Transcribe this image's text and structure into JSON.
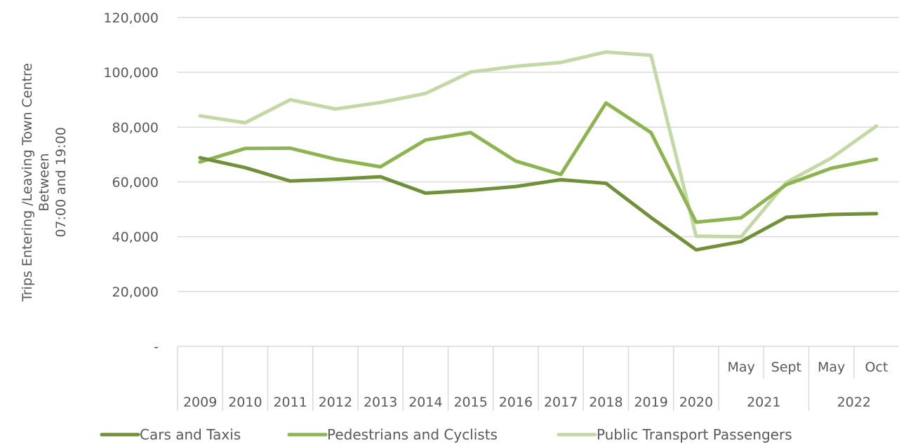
{
  "chart_data": {
    "type": "line",
    "title": "",
    "ylabel_lines": [
      "Trips Entering /Leaving Town Centre",
      "Between",
      "07:00 and 19:00"
    ],
    "ylim": [
      0,
      120000
    ],
    "yticks": [
      0,
      20000,
      40000,
      60000,
      80000,
      100000,
      120000
    ],
    "ytick_labels": [
      "-",
      "20,000",
      "40,000",
      "60,000",
      "80,000",
      "100,000",
      "120,000"
    ],
    "categories": [
      "2009",
      "2010",
      "2011",
      "2012",
      "2013",
      "2014",
      "2015",
      "2016",
      "2017",
      "2018",
      "2019",
      "2020",
      "May",
      "Sept",
      "May",
      "Oct"
    ],
    "category_groups": [
      {
        "label": "2021",
        "subs": [
          "May",
          "Sept"
        ]
      },
      {
        "label": "2022",
        "subs": [
          "May",
          "Oct"
        ]
      }
    ],
    "grid": true,
    "legend_position": "bottom",
    "series": [
      {
        "name": "Cars and Taxis",
        "color": "#70913a",
        "values": [
          68800,
          65200,
          60300,
          61000,
          61900,
          55900,
          56900,
          58300,
          60800,
          59500,
          47000,
          35200,
          38200,
          47100,
          48100,
          48400
        ]
      },
      {
        "name": "Pedestrians and Cyclists",
        "color": "#8db451",
        "values": [
          67300,
          72200,
          72300,
          68300,
          65500,
          75300,
          78000,
          67600,
          62700,
          88800,
          78000,
          45300,
          46900,
          59000,
          65000,
          68300
        ]
      },
      {
        "name": "Public Transport Passengers",
        "color": "#c4d8a6",
        "values": [
          84100,
          81600,
          90000,
          86600,
          89000,
          92300,
          100100,
          102200,
          103600,
          107400,
          106200,
          40200,
          40000,
          59800,
          68700,
          80400
        ]
      }
    ]
  }
}
